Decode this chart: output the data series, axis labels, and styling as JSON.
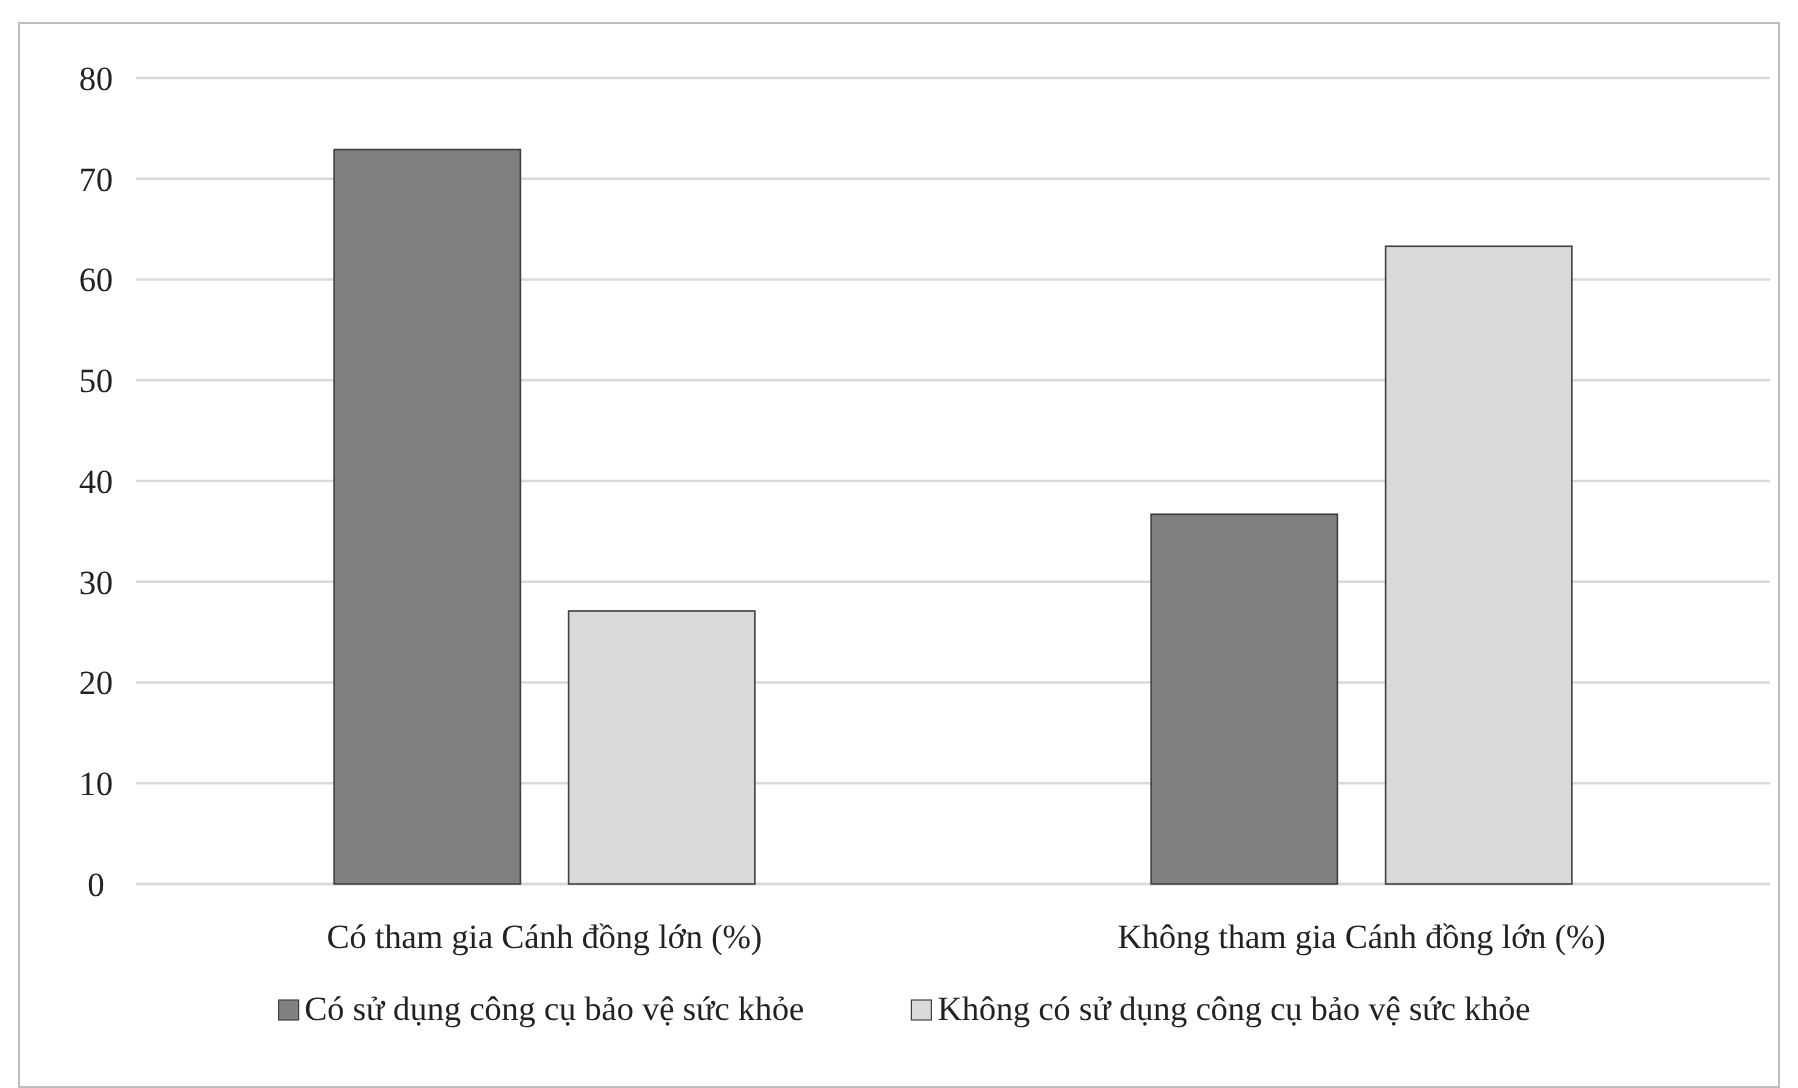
{
  "chart_data": {
    "type": "bar",
    "categories": [
      "Có tham gia Cánh đồng lớn (%)",
      "Không tham gia Cánh đồng lớn (%)"
    ],
    "series": [
      {
        "name": "Có sử dụng công cụ bảo vệ sức khỏe",
        "color": "#808080",
        "values": [
          72.9,
          36.7
        ]
      },
      {
        "name": "Không có sử dụng công cụ bảo vệ sức khỏe",
        "color": "#d9d9d9",
        "values": [
          27.1,
          63.3
        ]
      }
    ],
    "ylim": [
      0,
      80
    ],
    "yticks": [
      0,
      10,
      20,
      30,
      40,
      50,
      60,
      70,
      80
    ],
    "grid": "y",
    "legend": "bottom"
  }
}
